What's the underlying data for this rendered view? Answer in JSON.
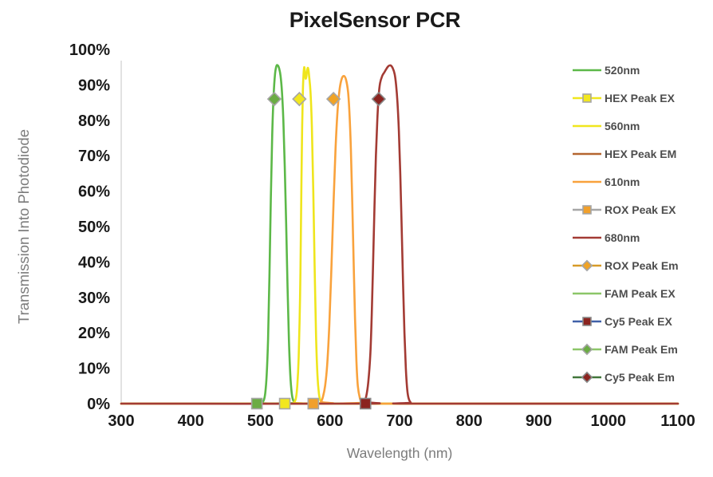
{
  "title": "PixelSensor PCR",
  "chart_data": {
    "type": "line",
    "title": "PixelSensor PCR",
    "xlabel": "Wavelength (nm)",
    "ylabel": "Transmission Into Photodiode",
    "xlim": [
      300,
      1100
    ],
    "ylim": [
      0,
      100
    ],
    "grid": false,
    "legend_position": "right",
    "background_color": "#ffffff",
    "axis_line_color": "#d9d9d9",
    "x_tick_values": [
      300,
      400,
      500,
      600,
      700,
      800,
      900,
      1000,
      1100
    ],
    "x_tick_labels": [
      "300",
      "400",
      "500",
      "600",
      "700",
      "800",
      "900",
      "1000",
      "1100"
    ],
    "y_tick_values": [
      0,
      10,
      20,
      30,
      40,
      50,
      60,
      70,
      80,
      90,
      100
    ],
    "y_tick_labels": [
      "0%",
      "10%",
      "20%",
      "30%",
      "40%",
      "50%",
      "60%",
      "70%",
      "80%",
      "90%",
      "100%"
    ],
    "curves": [
      {
        "name": "520nm",
        "color": "#5cb848",
        "points": [
          [
            300,
            0
          ],
          [
            498,
            0
          ],
          [
            502,
            0.2
          ],
          [
            505,
            1
          ],
          [
            507,
            3
          ],
          [
            509,
            8
          ],
          [
            511,
            18
          ],
          [
            513,
            36
          ],
          [
            515,
            58
          ],
          [
            517,
            76
          ],
          [
            519,
            87
          ],
          [
            521,
            93
          ],
          [
            523,
            95.3
          ],
          [
            525,
            95.5
          ],
          [
            527,
            94.6
          ],
          [
            529,
            92.5
          ],
          [
            531,
            88
          ],
          [
            533,
            80
          ],
          [
            535,
            67
          ],
          [
            537,
            51
          ],
          [
            539,
            33
          ],
          [
            541,
            18
          ],
          [
            543,
            8
          ],
          [
            545,
            3
          ],
          [
            547,
            1
          ],
          [
            550,
            0.2
          ],
          [
            554,
            0
          ],
          [
            1100,
            0
          ]
        ]
      },
      {
        "name": "560nm",
        "color": "#efe51c",
        "points": [
          [
            300,
            0
          ],
          [
            544,
            0
          ],
          [
            548,
            0.3
          ],
          [
            551,
            1.5
          ],
          [
            553,
            5
          ],
          [
            555,
            13
          ],
          [
            557,
            30
          ],
          [
            558,
            45
          ],
          [
            559,
            63
          ],
          [
            560,
            78
          ],
          [
            561,
            88
          ],
          [
            562,
            93
          ],
          [
            563,
            95
          ],
          [
            564,
            93.5
          ],
          [
            565,
            91.8
          ],
          [
            566,
            92.3
          ],
          [
            567,
            93.8
          ],
          [
            568,
            94.8
          ],
          [
            569,
            94.3
          ],
          [
            570,
            92.5
          ],
          [
            572,
            88
          ],
          [
            574,
            78
          ],
          [
            576,
            60
          ],
          [
            578,
            38
          ],
          [
            580,
            19
          ],
          [
            582,
            8
          ],
          [
            584,
            3
          ],
          [
            586,
            1
          ],
          [
            589,
            0.2
          ],
          [
            593,
            0
          ],
          [
            1100,
            0
          ]
        ]
      },
      {
        "name": "610nm",
        "color": "#f9a23c",
        "points": [
          [
            300,
            0
          ],
          [
            583,
            0
          ],
          [
            587,
            0.5
          ],
          [
            590,
            2
          ],
          [
            593,
            5
          ],
          [
            596,
            11
          ],
          [
            599,
            22
          ],
          [
            602,
            38
          ],
          [
            605,
            56
          ],
          [
            608,
            72
          ],
          [
            611,
            83
          ],
          [
            614,
            89
          ],
          [
            617,
            91.8
          ],
          [
            620,
            92.5
          ],
          [
            623,
            91.5
          ],
          [
            626,
            88
          ],
          [
            628,
            82
          ],
          [
            630,
            72
          ],
          [
            632,
            57
          ],
          [
            634,
            40
          ],
          [
            636,
            24
          ],
          [
            638,
            12
          ],
          [
            640,
            5
          ],
          [
            643,
            1.5
          ],
          [
            646,
            0.3
          ],
          [
            650,
            0
          ],
          [
            1100,
            0
          ]
        ]
      },
      {
        "name": "680nm",
        "color": "#a33b34",
        "points": [
          [
            300,
            0
          ],
          [
            645,
            0
          ],
          [
            649,
            0.5
          ],
          [
            652,
            2
          ],
          [
            655,
            6
          ],
          [
            658,
            14
          ],
          [
            660,
            25
          ],
          [
            662,
            40
          ],
          [
            664,
            56
          ],
          [
            666,
            70
          ],
          [
            668,
            80
          ],
          [
            670,
            87
          ],
          [
            672,
            90.5
          ],
          [
            675,
            92.5
          ],
          [
            678,
            93.5
          ],
          [
            681,
            94.5
          ],
          [
            684,
            95.3
          ],
          [
            687,
            95.5
          ],
          [
            690,
            94.8
          ],
          [
            693,
            93
          ],
          [
            695,
            90
          ],
          [
            697,
            85
          ],
          [
            699,
            77
          ],
          [
            701,
            65
          ],
          [
            703,
            50
          ],
          [
            705,
            34
          ],
          [
            707,
            20
          ],
          [
            709,
            10
          ],
          [
            711,
            4
          ],
          [
            713,
            1.5
          ],
          [
            716,
            0.3
          ],
          [
            720,
            0
          ],
          [
            1100,
            0
          ]
        ]
      }
    ],
    "peaks": [
      {
        "name": "FAM Peak EX",
        "shape": "square",
        "x": 495,
        "y": 0,
        "fill": "#6bac44",
        "stroke": "#a6a6a6"
      },
      {
        "name": "HEX Peak EX",
        "shape": "square",
        "x": 535,
        "y": 0,
        "fill": "#f2e71e",
        "stroke": "#a6a6a6"
      },
      {
        "name": "ROX Peak EX",
        "shape": "square",
        "x": 576,
        "y": 0,
        "fill": "#f1a02c",
        "stroke": "#a6a6a6"
      },
      {
        "name": "Cy5 Peak EX",
        "shape": "square",
        "x": 651,
        "y": 0,
        "fill": "#8b2420",
        "stroke": "#8a8a8a"
      },
      {
        "name": "FAM Peak Em",
        "shape": "diamond",
        "x": 520,
        "y": 86,
        "fill": "#6bac44",
        "stroke": "#a6a6a6"
      },
      {
        "name": "HEX Peak EM",
        "shape": "diamond",
        "x": 556,
        "y": 86,
        "fill": "#f2e71e",
        "stroke": "#a6a6a6"
      },
      {
        "name": "ROX Peak Em",
        "shape": "diamond",
        "x": 605,
        "y": 86,
        "fill": "#f0a325",
        "stroke": "#a6a6a6"
      },
      {
        "name": "Cy5 Peak Em",
        "shape": "diamond",
        "x": 670,
        "y": 86,
        "fill": "#8b2420",
        "stroke": "#8a8a8a"
      }
    ],
    "legend": [
      {
        "label": "520nm",
        "line": "#5cb848",
        "marker": null
      },
      {
        "label": "HEX Peak EX",
        "line": "#f0e61d",
        "marker": {
          "shape": "square",
          "fill": "#f2e71e",
          "stroke": "#a6a6a6"
        }
      },
      {
        "label": "560nm",
        "line": "#f0e61d",
        "marker": null
      },
      {
        "label": "HEX Peak EM",
        "line": "#b4652f",
        "marker": null
      },
      {
        "label": "610nm",
        "line": "#f9a23c",
        "marker": null
      },
      {
        "label": "ROX Peak EX",
        "line": "#a6a6a6",
        "marker": {
          "shape": "square",
          "fill": "#f1a02c",
          "stroke": "#a6a6a6"
        }
      },
      {
        "label": "680nm",
        "line": "#a33b34",
        "marker": null
      },
      {
        "label": "ROX Peak Em",
        "line": "#d79b28",
        "marker": {
          "shape": "diamond",
          "fill": "#f0a325",
          "stroke": "#a6a6a6"
        }
      },
      {
        "label": "FAM Peak EX",
        "line": "#8cc668",
        "marker": null
      },
      {
        "label": "Cy5 Peak EX",
        "line": "#4061a8",
        "marker": {
          "shape": "square",
          "fill": "#8b2420",
          "stroke": "#8a8a8a"
        }
      },
      {
        "label": "FAM Peak Em",
        "line": "#8cc668",
        "marker": {
          "shape": "diamond",
          "fill": "#6bac44",
          "stroke": "#a6a6a6"
        }
      },
      {
        "label": "Cy5 Peak Em",
        "line": "#41763b",
        "marker": {
          "shape": "diamond",
          "fill": "#8b2420",
          "stroke": "#8a8a8a"
        }
      }
    ]
  }
}
